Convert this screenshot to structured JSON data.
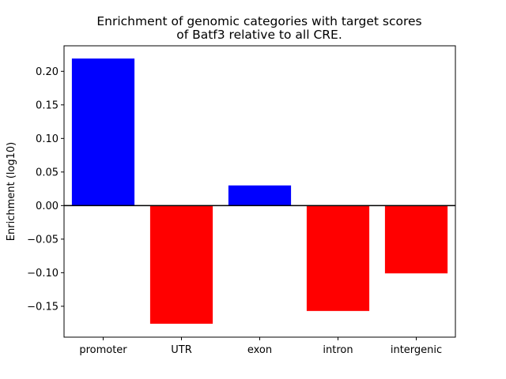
{
  "chart_data": {
    "type": "bar",
    "title_lines": [
      "Enrichment of genomic categories with target scores",
      "of Batf3 relative to all CRE."
    ],
    "xlabel": "",
    "ylabel": "Enrichment (log10)",
    "categories": [
      "promoter",
      "UTR",
      "exon",
      "intron",
      "intergenic"
    ],
    "values": [
      0.219,
      -0.176,
      0.03,
      -0.157,
      -0.101
    ],
    "ylim": [
      -0.196,
      0.238
    ],
    "yticks": [
      -0.15,
      -0.1,
      -0.05,
      0.0,
      0.05,
      0.1,
      0.15,
      0.2
    ],
    "ytick_labels": [
      "−0.15",
      "−0.10",
      "−0.05",
      "0.00",
      "0.05",
      "0.10",
      "0.15",
      "0.20"
    ],
    "grid": false,
    "zero_line": true,
    "colors": {
      "positive": "#0000ff",
      "negative": "#ff0000",
      "axis": "#000000"
    }
  }
}
